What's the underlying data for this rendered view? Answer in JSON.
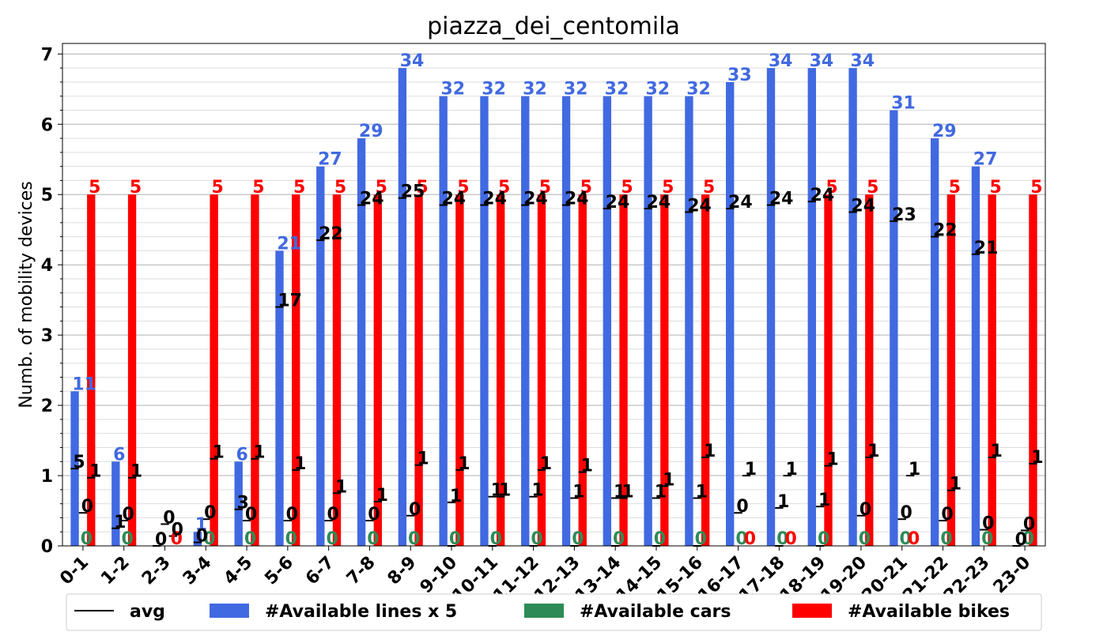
{
  "chart_data": {
    "type": "bar",
    "title": "piazza_dei_centomila",
    "ylabel": "Numb. of mobility devices",
    "xlabel": "",
    "ylim": [
      0,
      7.15
    ],
    "yticks": [
      0,
      1,
      2,
      3,
      4,
      5,
      6,
      7
    ],
    "grid": true,
    "legend_position": "bottom",
    "categories": [
      "0-1",
      "1-2",
      "2-3",
      "3-4",
      "4-5",
      "5-6",
      "6-7",
      "7-8",
      "8-9",
      "9-10",
      "10-11",
      "11-12",
      "12-13",
      "13-14",
      "14-15",
      "15-16",
      "16-17",
      "17-18",
      "18-19",
      "19-20",
      "20-21",
      "21-22",
      "22-23",
      "23-0"
    ],
    "series": [
      {
        "name": "#Available lines x 5",
        "color": "#4169e1",
        "label_color": "#4169e1",
        "values": [
          2.2,
          1.2,
          0,
          0.2,
          1.2,
          4.2,
          5.4,
          5.8,
          6.8,
          6.4,
          6.4,
          6.4,
          6.4,
          6.4,
          6.4,
          6.4,
          6.6,
          6.8,
          6.8,
          6.8,
          6.2,
          5.8,
          5.4,
          0
        ],
        "labels": [
          "11",
          "6",
          "",
          "1",
          "6",
          "21",
          "27",
          "29",
          "34",
          "32",
          "32",
          "32",
          "32",
          "32",
          "32",
          "32",
          "33",
          "34",
          "34",
          "34",
          "31",
          "29",
          "27",
          ""
        ]
      },
      {
        "name": "#Available cars",
        "color": "#2e8b57",
        "label_color": "#2e8b57",
        "values": [
          0,
          0,
          0,
          0,
          0,
          0,
          0,
          0,
          0,
          0,
          0,
          0,
          0,
          0,
          0,
          0,
          0,
          0,
          0,
          0,
          0,
          0,
          0,
          0
        ],
        "labels": [
          "0",
          "0",
          "",
          "0",
          "0",
          "0",
          "0",
          "0",
          "0",
          "0",
          "0",
          "0",
          "0",
          "0",
          "0",
          "0",
          "0",
          "0",
          "0",
          "0",
          "0",
          "0",
          "0",
          "0"
        ]
      },
      {
        "name": "#Available bikes",
        "color": "#ff0000",
        "label_color": "#ff0000",
        "values": [
          5,
          5,
          0,
          5,
          5,
          5,
          5,
          5,
          5,
          5,
          5,
          5,
          5,
          5,
          5,
          5,
          0,
          0,
          5,
          5,
          0,
          5,
          5,
          5
        ],
        "labels": [
          "5",
          "5",
          "0",
          "5",
          "5",
          "5",
          "5",
          "5",
          "5",
          "5",
          "5",
          "5",
          "5",
          "5",
          "5",
          "5",
          "0",
          "0",
          "5",
          "5",
          "0",
          "5",
          "5",
          "5"
        ]
      }
    ],
    "avg": {
      "name": "avg",
      "color": "#000000",
      "lines": [
        1.1,
        0.25,
        0,
        0.05,
        0.52,
        3.4,
        4.35,
        4.85,
        4.95,
        4.85,
        4.85,
        4.85,
        4.85,
        4.8,
        4.8,
        4.75,
        4.8,
        4.85,
        4.9,
        4.75,
        4.62,
        4.4,
        4.15,
        0
      ],
      "lines_labels": [
        "5",
        "1",
        "0",
        "0",
        "3",
        "17",
        "22",
        "24",
        "25",
        "24",
        "24",
        "24",
        "24",
        "24",
        "24",
        "24",
        "24",
        "24",
        "24",
        "24",
        "23",
        "22",
        "21",
        "0"
      ],
      "cars": [
        0.47,
        0.36,
        0.31,
        0.38,
        0.36,
        0.36,
        0.36,
        0.36,
        0.43,
        0,
        0,
        0,
        0,
        0,
        0,
        0,
        0.47,
        0,
        0,
        0.43,
        0.38,
        0.36,
        0.23,
        0.22
      ],
      "cars_labels": [
        "0",
        "0",
        "0",
        "0",
        "0",
        "0",
        "0",
        "0",
        "0",
        "",
        "",
        "",
        "",
        "",
        "",
        "",
        "0",
        "",
        "",
        "0",
        "0",
        "0",
        "0",
        "0"
      ],
      "bikes": [
        0.97,
        0.97,
        0.14,
        1.24,
        1.24,
        1.08,
        0.75,
        0.63,
        1.15,
        1.08,
        0.7,
        1.08,
        1.05,
        0.68,
        0.85,
        1.26,
        1,
        1,
        1.14,
        1.26,
        1.0,
        0.79,
        1.26,
        1.17
      ],
      "bikes_labels": [
        "1",
        "1",
        "0",
        "1",
        "1",
        "1",
        "1",
        "1",
        "1",
        "1",
        "1",
        "1",
        "1",
        "1",
        "1",
        "1",
        "1",
        "1",
        "1",
        "1",
        "1",
        "1",
        "1",
        "1"
      ],
      "extra": [
        null,
        null,
        null,
        null,
        null,
        null,
        null,
        null,
        null,
        0.62,
        0.7,
        0.7,
        0.68,
        0.68,
        0.68,
        0.68,
        null,
        0.54,
        0.56,
        null,
        null,
        null,
        null,
        null
      ],
      "extra_labels": [
        "",
        "",
        "",
        "",
        "",
        "",
        "",
        "",
        "",
        "1",
        "1",
        "1",
        "1",
        "1",
        "1",
        "1",
        "",
        "1",
        "1",
        "",
        "",
        "",
        "",
        ""
      ]
    }
  }
}
